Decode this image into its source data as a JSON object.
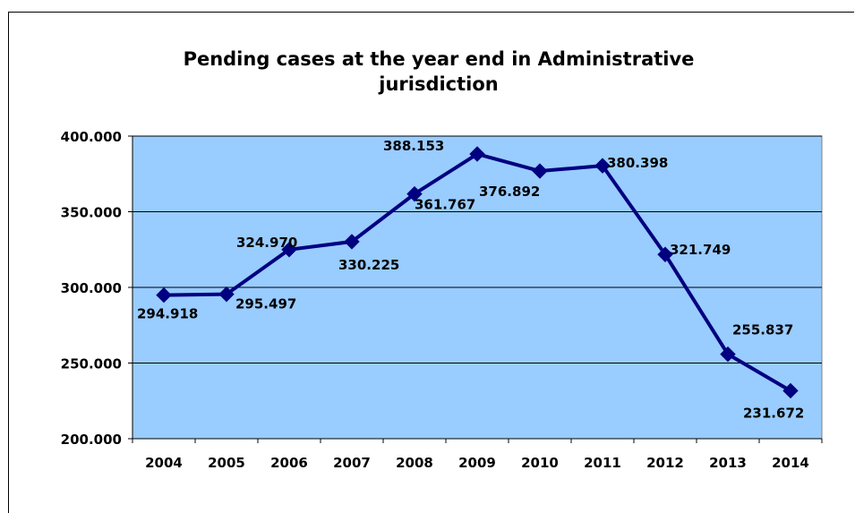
{
  "chart_data": {
    "type": "line",
    "title": "Pending cases at the year end in Administrative jurisdiction",
    "xlabel": "",
    "ylabel": "",
    "categories": [
      "2004",
      "2005",
      "2006",
      "2007",
      "2008",
      "2009",
      "2010",
      "2011",
      "2012",
      "2013",
      "2014"
    ],
    "values": [
      294918,
      295497,
      324970,
      330225,
      361767,
      388153,
      376892,
      380398,
      321749,
      255837,
      231672
    ],
    "value_labels": [
      "294.918",
      "295.497",
      "324.970",
      "330.225",
      "361.767",
      "388.153",
      "376.892",
      "380.398",
      "321.749",
      "255.837",
      "231.672"
    ],
    "ylim": [
      200000,
      400000
    ],
    "y_ticks": [
      200000,
      250000,
      300000,
      350000,
      400000
    ],
    "y_tick_labels": [
      "200.000",
      "250.000",
      "300.000",
      "350.000",
      "400.000"
    ],
    "grid": true,
    "legend": "none",
    "colors": {
      "line": "#000080",
      "plot_background": "#99CCFF",
      "gridline": "#000000"
    }
  }
}
